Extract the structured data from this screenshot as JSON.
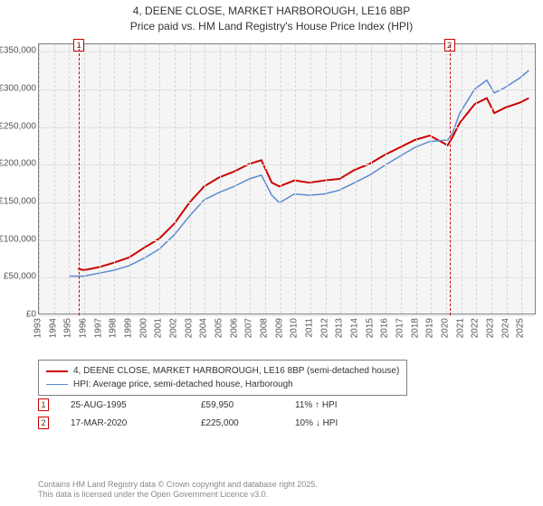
{
  "title": {
    "line1": "4, DEENE CLOSE, MARKET HARBOROUGH, LE16 8BP",
    "line2": "Price paid vs. HM Land Registry's House Price Index (HPI)"
  },
  "chart": {
    "type": "line",
    "background_color": "#f5f5f5",
    "grid_color": "#e0e0e0",
    "border_color": "#808080",
    "x": {
      "min": 1993,
      "max": 2026,
      "ticks": [
        1993,
        1994,
        1995,
        1996,
        1997,
        1998,
        1999,
        2000,
        2001,
        2002,
        2003,
        2004,
        2005,
        2006,
        2007,
        2008,
        2009,
        2010,
        2011,
        2012,
        2013,
        2014,
        2015,
        2016,
        2017,
        2018,
        2019,
        2020,
        2021,
        2022,
        2023,
        2024,
        2025
      ]
    },
    "y": {
      "min": 0,
      "max": 360000,
      "ticks": [
        0,
        50000,
        100000,
        150000,
        200000,
        250000,
        300000,
        350000
      ],
      "tick_labels": [
        "£0",
        "£50,000",
        "£100,000",
        "£150,000",
        "£200,000",
        "£250,000",
        "£300,000",
        "£350,000"
      ]
    },
    "series": [
      {
        "name": "property",
        "label": "4, DEENE CLOSE, MARKET HARBOROUGH, LE16 8BP (semi-detached house)",
        "color": "#cc0000",
        "width": 2,
        "points": [
          [
            1995.6,
            59950
          ],
          [
            1996,
            58000
          ],
          [
            1997,
            62000
          ],
          [
            1998,
            68000
          ],
          [
            1999,
            75000
          ],
          [
            2000,
            88000
          ],
          [
            2001,
            100000
          ],
          [
            2002,
            120000
          ],
          [
            2003,
            148000
          ],
          [
            2004,
            170000
          ],
          [
            2005,
            182000
          ],
          [
            2006,
            190000
          ],
          [
            2007,
            200000
          ],
          [
            2007.8,
            205000
          ],
          [
            2008.5,
            175000
          ],
          [
            2009,
            170000
          ],
          [
            2010,
            178000
          ],
          [
            2011,
            175000
          ],
          [
            2012,
            178000
          ],
          [
            2013,
            180000
          ],
          [
            2014,
            192000
          ],
          [
            2015,
            200000
          ],
          [
            2016,
            212000
          ],
          [
            2017,
            222000
          ],
          [
            2018,
            232000
          ],
          [
            2019,
            238000
          ],
          [
            2020.2,
            225000
          ],
          [
            2020.5,
            235000
          ],
          [
            2021,
            255000
          ],
          [
            2022,
            280000
          ],
          [
            2022.8,
            288000
          ],
          [
            2023.3,
            268000
          ],
          [
            2024,
            275000
          ],
          [
            2025,
            282000
          ],
          [
            2025.6,
            288000
          ]
        ]
      },
      {
        "name": "hpi",
        "label": "HPI: Average price, semi-detached house, Harborough",
        "color": "#5b8bd0",
        "width": 1.5,
        "points": [
          [
            1995.0,
            50000
          ],
          [
            1996,
            50000
          ],
          [
            1997,
            54000
          ],
          [
            1998,
            58000
          ],
          [
            1999,
            64000
          ],
          [
            2000,
            74000
          ],
          [
            2001,
            86000
          ],
          [
            2002,
            105000
          ],
          [
            2003,
            130000
          ],
          [
            2004,
            152000
          ],
          [
            2005,
            162000
          ],
          [
            2006,
            170000
          ],
          [
            2007,
            180000
          ],
          [
            2007.8,
            185000
          ],
          [
            2008.5,
            158000
          ],
          [
            2009,
            148000
          ],
          [
            2010,
            160000
          ],
          [
            2011,
            158000
          ],
          [
            2012,
            160000
          ],
          [
            2013,
            165000
          ],
          [
            2014,
            175000
          ],
          [
            2015,
            185000
          ],
          [
            2016,
            198000
          ],
          [
            2017,
            210000
          ],
          [
            2018,
            222000
          ],
          [
            2019,
            230000
          ],
          [
            2020.2,
            232000
          ],
          [
            2020.5,
            240000
          ],
          [
            2021,
            268000
          ],
          [
            2022,
            300000
          ],
          [
            2022.8,
            312000
          ],
          [
            2023.3,
            295000
          ],
          [
            2024,
            302000
          ],
          [
            2025,
            315000
          ],
          [
            2025.6,
            325000
          ]
        ]
      }
    ],
    "markers": [
      {
        "index": "1",
        "x": 1995.65,
        "color": "#cc0000"
      },
      {
        "index": "2",
        "x": 2020.21,
        "color": "#cc0000"
      }
    ]
  },
  "legend": {
    "items": [
      {
        "color": "#cc0000",
        "width": 2,
        "label": "4, DEENE CLOSE, MARKET HARBOROUGH, LE16 8BP (semi-detached house)"
      },
      {
        "color": "#5b8bd0",
        "width": 1.5,
        "label": "HPI: Average price, semi-detached house, Harborough"
      }
    ]
  },
  "transactions": [
    {
      "idx": "1",
      "color": "#cc0000",
      "date": "25-AUG-1995",
      "price": "£59,950",
      "delta": "11% ↑ HPI"
    },
    {
      "idx": "2",
      "color": "#cc0000",
      "date": "17-MAR-2020",
      "price": "£225,000",
      "delta": "10% ↓ HPI"
    }
  ],
  "footer": {
    "line1": "Contains HM Land Registry data © Crown copyright and database right 2025.",
    "line2": "This data is licensed under the Open Government Licence v3.0."
  }
}
